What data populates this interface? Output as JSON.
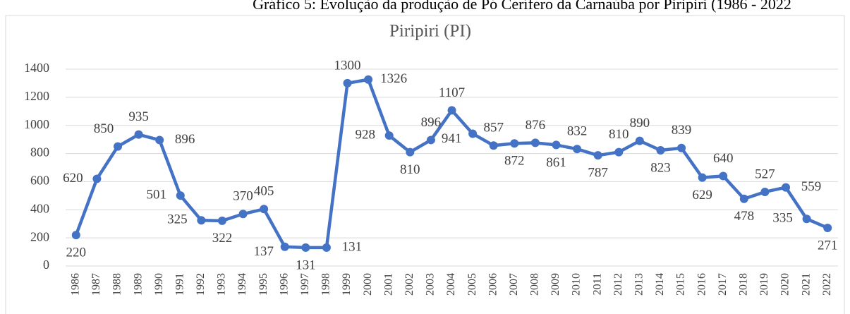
{
  "chart_data": {
    "type": "line",
    "title": "Gráfico 5: Evolução da produção de Pó Cerífero da Carnaúba por Piripiri (1986 - 2022",
    "subtitle": "Piripiri (PI)",
    "categories": [
      "1986",
      "1987",
      "1988",
      "1989",
      "1990",
      "1991",
      "1992",
      "1993",
      "1994",
      "1995",
      "1996",
      "1997",
      "1998",
      "1999",
      "2000",
      "2001",
      "2002",
      "2003",
      "2004",
      "2005",
      "2006",
      "2007",
      "2008",
      "2009",
      "2010",
      "2011",
      "2012",
      "2013",
      "2014",
      "2015",
      "2016",
      "2017",
      "2018",
      "2019",
      "2020",
      "2021",
      "2022"
    ],
    "series": [
      {
        "name": "Piripiri (PI)",
        "color": "#4472c4",
        "values": [
          220,
          620,
          850,
          935,
          896,
          501,
          325,
          322,
          370,
          405,
          137,
          131,
          131,
          1300,
          1326,
          928,
          810,
          896,
          1107,
          941,
          857,
          872,
          876,
          861,
          832,
          787,
          810,
          890,
          823,
          839,
          629,
          640,
          478,
          527,
          559,
          335,
          271
        ]
      }
    ],
    "ylim": [
      0,
      1400
    ],
    "yticks": [
      0,
      200,
      400,
      600,
      800,
      1000,
      1200,
      1400
    ],
    "grid": true
  }
}
